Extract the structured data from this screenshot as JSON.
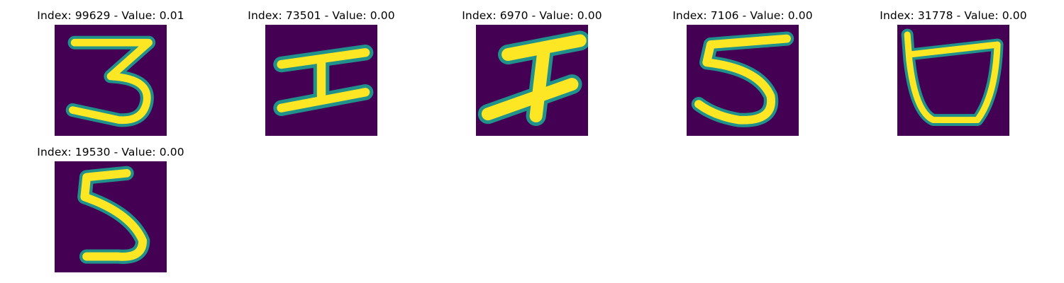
{
  "figure": {
    "colormap": "viridis",
    "background_color": "#440154",
    "panels": [
      {
        "title": "Index: 99629 - Value: 0.01",
        "glyph": "3"
      },
      {
        "title": "Index: 73501 - Value: 0.00",
        "glyph": "I"
      },
      {
        "title": "Index: 6970 - Value: 0.00",
        "glyph": "slanted-I"
      },
      {
        "title": "Index: 7106 - Value: 0.00",
        "glyph": "5"
      },
      {
        "title": "Index: 31778 - Value: 0.00",
        "glyph": "U"
      },
      {
        "title": "Index: 19530 - Value: 0.00",
        "glyph": "5"
      }
    ]
  }
}
